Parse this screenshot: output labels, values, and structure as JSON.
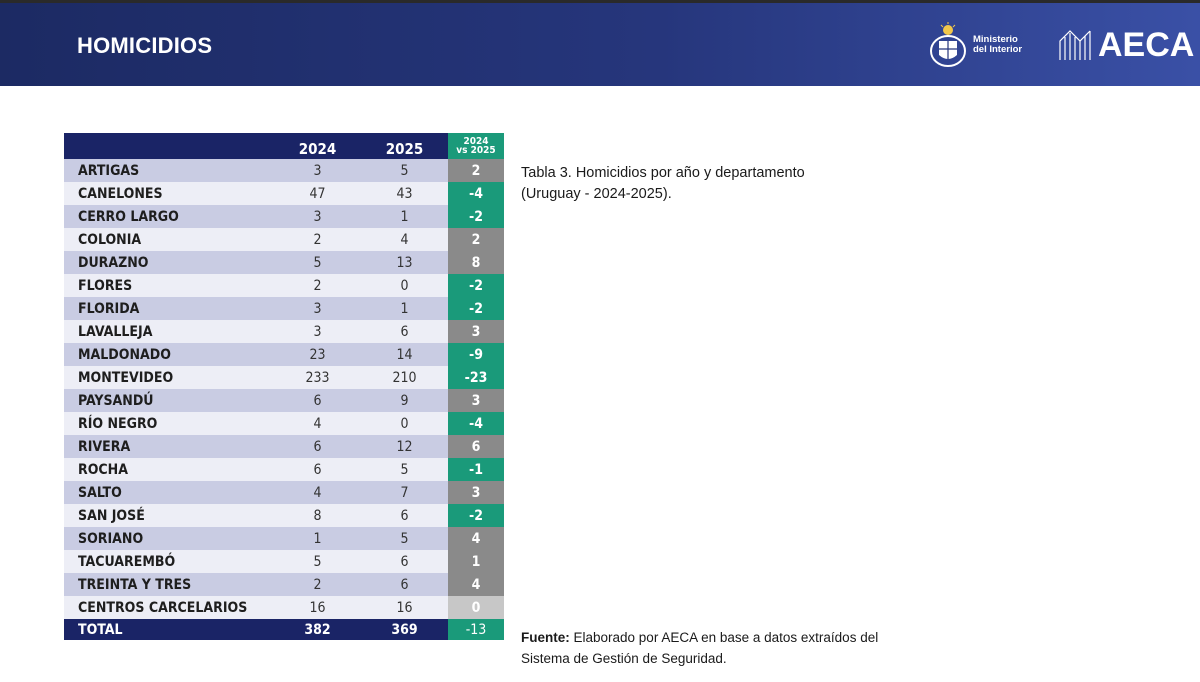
{
  "header": {
    "title": "HOMICIDIOS",
    "ministry_line1": "Ministerio",
    "ministry_line2": "del Interior",
    "aeca": "AECA"
  },
  "table": {
    "headers": {
      "year1": "2024",
      "year2": "2025",
      "diff_line1": "2024",
      "diff_line2": "vs 2025"
    },
    "rows": [
      {
        "name": "ARTIGAS",
        "y2024": "3",
        "y2025": "5",
        "diff": "2"
      },
      {
        "name": "CANELONES",
        "y2024": "47",
        "y2025": "43",
        "diff": "-4"
      },
      {
        "name": "CERRO LARGO",
        "y2024": "3",
        "y2025": "1",
        "diff": "-2"
      },
      {
        "name": "COLONIA",
        "y2024": "2",
        "y2025": "4",
        "diff": "2"
      },
      {
        "name": "DURAZNO",
        "y2024": "5",
        "y2025": "13",
        "diff": "8"
      },
      {
        "name": "FLORES",
        "y2024": "2",
        "y2025": "0",
        "diff": "-2"
      },
      {
        "name": "FLORIDA",
        "y2024": "3",
        "y2025": "1",
        "diff": "-2"
      },
      {
        "name": "LAVALLEJA",
        "y2024": "3",
        "y2025": "6",
        "diff": "3"
      },
      {
        "name": "MALDONADO",
        "y2024": "23",
        "y2025": "14",
        "diff": "-9"
      },
      {
        "name": "MONTEVIDEO",
        "y2024": "233",
        "y2025": "210",
        "diff": "-23"
      },
      {
        "name": "PAYSANDÚ",
        "y2024": "6",
        "y2025": "9",
        "diff": "3"
      },
      {
        "name": "RÍO NEGRO",
        "y2024": "4",
        "y2025": "0",
        "diff": "-4"
      },
      {
        "name": "RIVERA",
        "y2024": "6",
        "y2025": "12",
        "diff": "6"
      },
      {
        "name": "ROCHA",
        "y2024": "6",
        "y2025": "5",
        "diff": "-1"
      },
      {
        "name": "SALTO",
        "y2024": "4",
        "y2025": "7",
        "diff": "3"
      },
      {
        "name": "SAN JOSÉ",
        "y2024": "8",
        "y2025": "6",
        "diff": "-2"
      },
      {
        "name": "SORIANO",
        "y2024": "1",
        "y2025": "5",
        "diff": "4"
      },
      {
        "name": "TACUAREMBÓ",
        "y2024": "5",
        "y2025": "6",
        "diff": "1"
      },
      {
        "name": "TREINTA Y TRES",
        "y2024": "2",
        "y2025": "6",
        "diff": "4"
      },
      {
        "name": "CENTROS CARCELARIOS",
        "y2024": "16",
        "y2025": "16",
        "diff": "0"
      }
    ],
    "total": {
      "name": "TOTAL",
      "y2024": "382",
      "y2025": "369",
      "diff": "-13"
    }
  },
  "caption": "Tabla 3. Homicidios por año y departamento (Uruguay - 2024-2025).",
  "source": {
    "label": "Fuente:",
    "text": " Elaborado por AECA en base a datos extraídos del Sistema de Gestión de Seguridad."
  },
  "colors": {
    "header_bg": "#1c2a63",
    "table_header": "#1a2466",
    "increase": "#8a8a8a",
    "decrease": "#1a9a7a",
    "no_change": "#c7c7c7"
  }
}
